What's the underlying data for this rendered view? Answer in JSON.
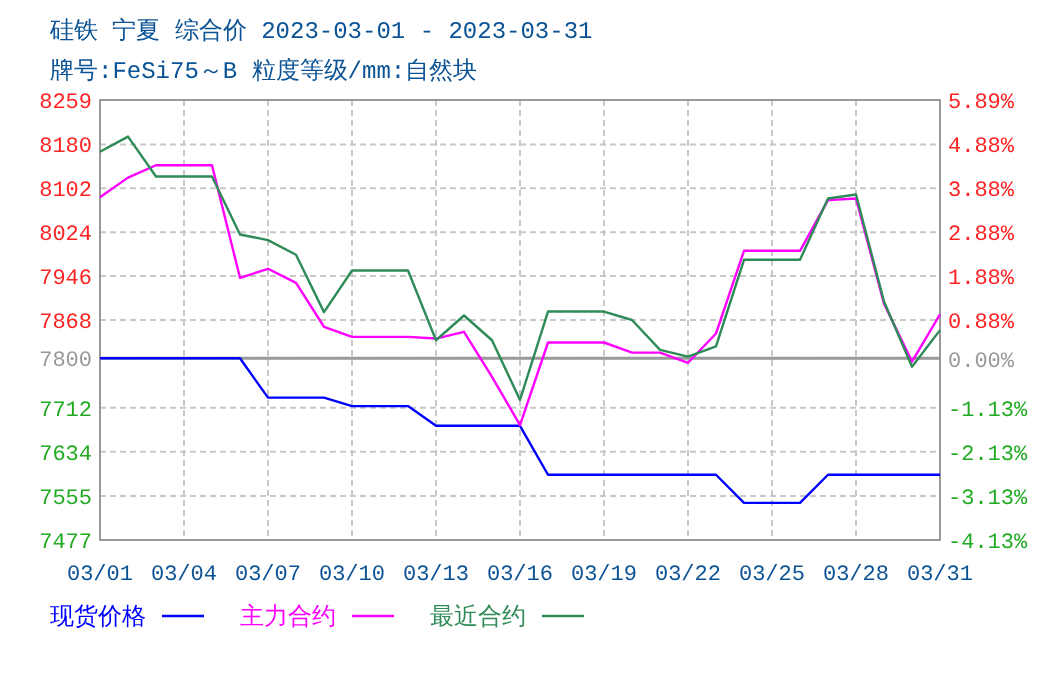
{
  "chart_data": {
    "type": "line",
    "title": "硅铁 宁夏 综合价 2023-03-01 - 2023-03-31",
    "subtitle": "牌号:FeSi75～B 粒度等级/mm:自然块",
    "xlim": [
      "2023-03-01",
      "2023-03-31"
    ],
    "xticks": [
      {
        "value": "2023-03-01",
        "label": "03/01"
      },
      {
        "value": "2023-03-04",
        "label": "03/04"
      },
      {
        "value": "2023-03-07",
        "label": "03/07"
      },
      {
        "value": "2023-03-10",
        "label": "03/10"
      },
      {
        "value": "2023-03-13",
        "label": "03/13"
      },
      {
        "value": "2023-03-16",
        "label": "03/16"
      },
      {
        "value": "2023-03-19",
        "label": "03/19"
      },
      {
        "value": "2023-03-22",
        "label": "03/22"
      },
      {
        "value": "2023-03-25",
        "label": "03/25"
      },
      {
        "value": "2023-03-28",
        "label": "03/28"
      },
      {
        "value": "2023-03-31",
        "label": "03/31"
      }
    ],
    "ylim": [
      7477,
      8259
    ],
    "yticks": [
      7477,
      7555,
      7634,
      7712,
      7800,
      7868,
      7946,
      8024,
      8102,
      8180,
      8259
    ],
    "y2lim": [
      -4.13,
      5.89
    ],
    "y2ticks": [
      {
        "value": -4.13,
        "label": "-4.13%"
      },
      {
        "value": -3.13,
        "label": "-3.13%"
      },
      {
        "value": -2.13,
        "label": "-2.13%"
      },
      {
        "value": -1.13,
        "label": "-1.13%"
      },
      {
        "value": 0,
        "label": "0.00%"
      },
      {
        "value": 0.88,
        "label": "0.88%"
      },
      {
        "value": 1.88,
        "label": "1.88%"
      },
      {
        "value": 2.88,
        "label": "2.88%"
      },
      {
        "value": 3.88,
        "label": "3.88%"
      },
      {
        "value": 4.88,
        "label": "4.88%"
      },
      {
        "value": 5.89,
        "label": "5.89%"
      }
    ],
    "ref_lines": [
      {
        "axis": "y",
        "value": 7800,
        "color": "#999999"
      }
    ],
    "grid": true,
    "legend": "bottom",
    "series": [
      {
        "name": "现货价格",
        "color": "#0000ff",
        "x": [
          "2023-03-01",
          "2023-03-06",
          "2023-03-07",
          "2023-03-09",
          "2023-03-10",
          "2023-03-12",
          "2023-03-13",
          "2023-03-16",
          "2023-03-17",
          "2023-03-23",
          "2023-03-24",
          "2023-03-26",
          "2023-03-27",
          "2023-03-31"
        ],
        "values": [
          7800,
          7800,
          7730,
          7730,
          7715,
          7715,
          7680,
          7680,
          7593,
          7593,
          7543,
          7543,
          7593,
          7593
        ]
      },
      {
        "name": "主力合约",
        "color": "#ff00ff",
        "x": [
          "2023-03-01",
          "2023-03-02",
          "2023-03-03",
          "2023-03-05",
          "2023-03-06",
          "2023-03-07",
          "2023-03-08",
          "2023-03-09",
          "2023-03-10",
          "2023-03-12",
          "2023-03-13",
          "2023-03-14",
          "2023-03-15",
          "2023-03-16",
          "2023-03-17",
          "2023-03-19",
          "2023-03-20",
          "2023-03-21",
          "2023-03-22",
          "2023-03-23",
          "2023-03-24",
          "2023-03-26",
          "2023-03-27",
          "2023-03-28",
          "2023-03-29",
          "2023-03-30",
          "2023-03-31"
        ],
        "values": [
          8086,
          8121,
          8143,
          8143,
          7943,
          7959,
          7934,
          7856,
          7838,
          7838,
          7835,
          7847,
          7767,
          7681,
          7828,
          7828,
          7810,
          7810,
          7792,
          7844,
          7991,
          7991,
          8081,
          8084,
          7897,
          7794,
          7878
        ]
      },
      {
        "name": "最近合约",
        "color": "#2e8b57",
        "x": [
          "2023-03-01",
          "2023-03-02",
          "2023-03-03",
          "2023-03-05",
          "2023-03-06",
          "2023-03-07",
          "2023-03-08",
          "2023-03-09",
          "2023-03-10",
          "2023-03-12",
          "2023-03-13",
          "2023-03-14",
          "2023-03-15",
          "2023-03-16",
          "2023-03-17",
          "2023-03-19",
          "2023-03-20",
          "2023-03-21",
          "2023-03-22",
          "2023-03-23",
          "2023-03-24",
          "2023-03-26",
          "2023-03-27",
          "2023-03-28",
          "2023-03-29",
          "2023-03-30",
          "2023-03-31"
        ],
        "values": [
          8167,
          8194,
          8123,
          8123,
          8020,
          8010,
          7984,
          7882,
          7956,
          7956,
          7832,
          7876,
          7832,
          7726,
          7883,
          7883,
          7868,
          7815,
          7803,
          7821,
          7975,
          7975,
          8084,
          8091,
          7901,
          7785,
          7850
        ]
      }
    ]
  }
}
